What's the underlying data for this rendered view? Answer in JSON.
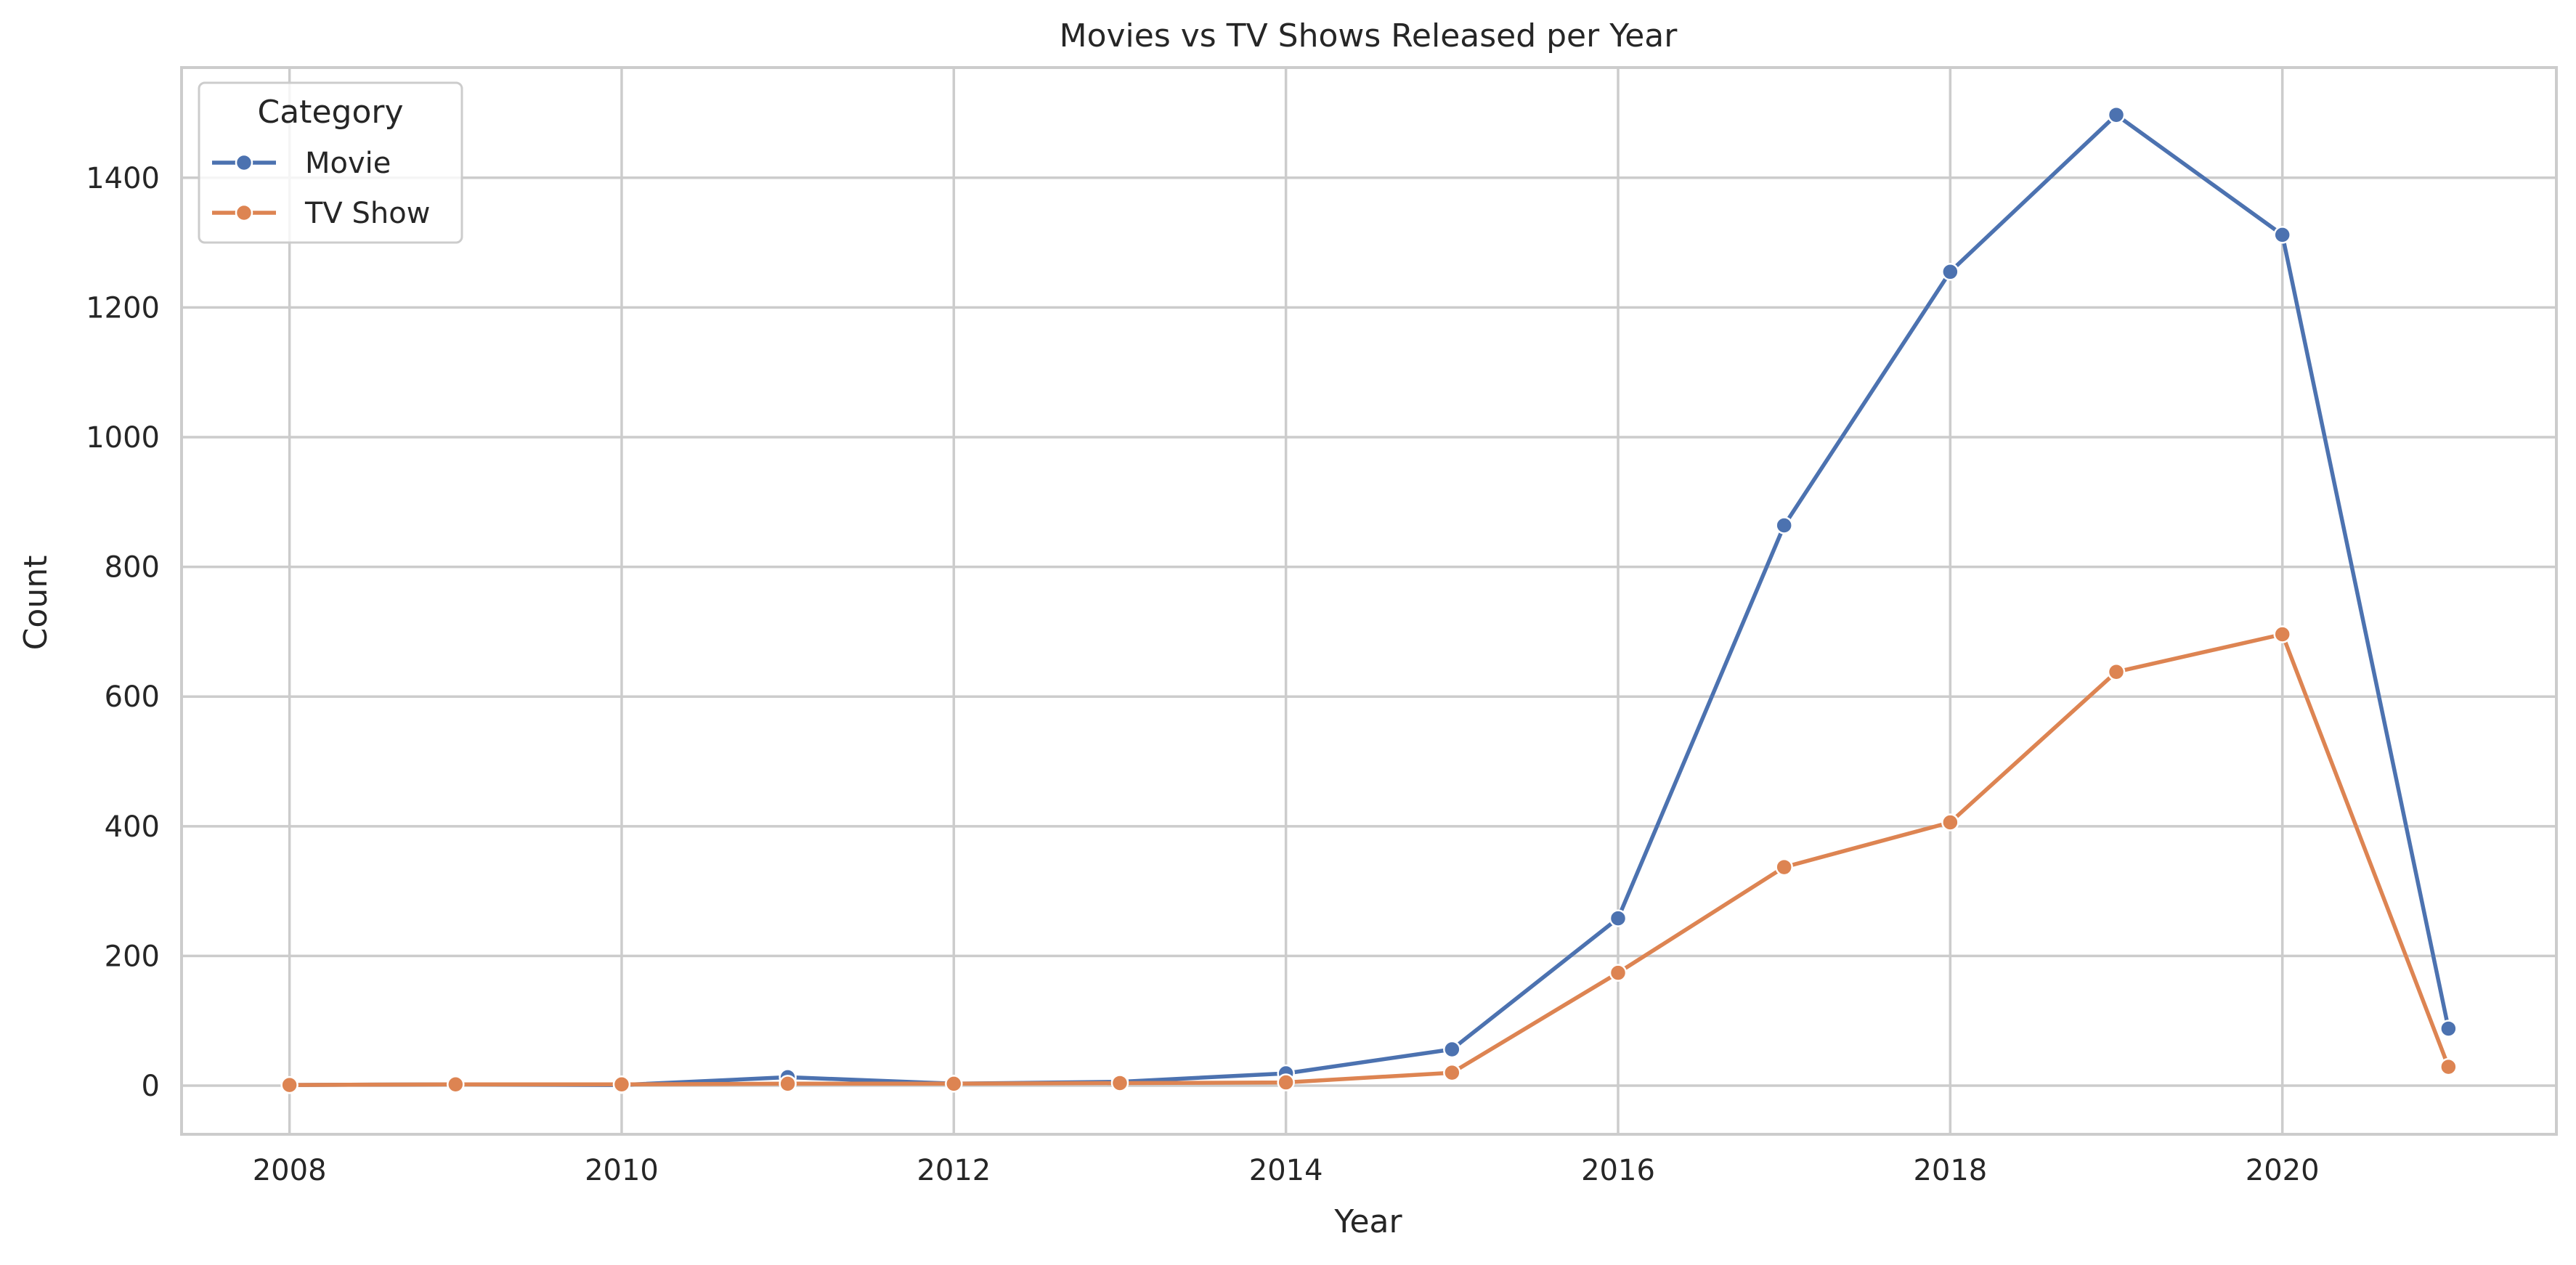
{
  "chart_data": {
    "type": "line",
    "title": "Movies vs TV Shows Released per Year",
    "xlabel": "Year",
    "ylabel": "Count",
    "x": [
      2008,
      2009,
      2010,
      2011,
      2012,
      2013,
      2014,
      2015,
      2016,
      2017,
      2018,
      2019,
      2020,
      2021
    ],
    "xlim": [
      2007.35,
      2021.65
    ],
    "ylim": [
      -75,
      1570
    ],
    "xticks": [
      2008,
      2010,
      2012,
      2014,
      2016,
      2018,
      2020
    ],
    "yticks": [
      0,
      200,
      400,
      600,
      800,
      1000,
      1200,
      1400
    ],
    "grid": true,
    "legend": {
      "title": "Category",
      "placement": "top-left"
    },
    "series": [
      {
        "name": "Movie",
        "color": "#4c72b0",
        "values": [
          1,
          2,
          1,
          13,
          3,
          6,
          19,
          56,
          258,
          864,
          1255,
          1497,
          1312,
          88
        ]
      },
      {
        "name": "TV Show",
        "color": "#dd8452",
        "values": [
          1,
          2,
          2,
          3,
          3,
          4,
          5,
          20,
          174,
          337,
          406,
          638,
          696,
          29
        ]
      }
    ]
  }
}
